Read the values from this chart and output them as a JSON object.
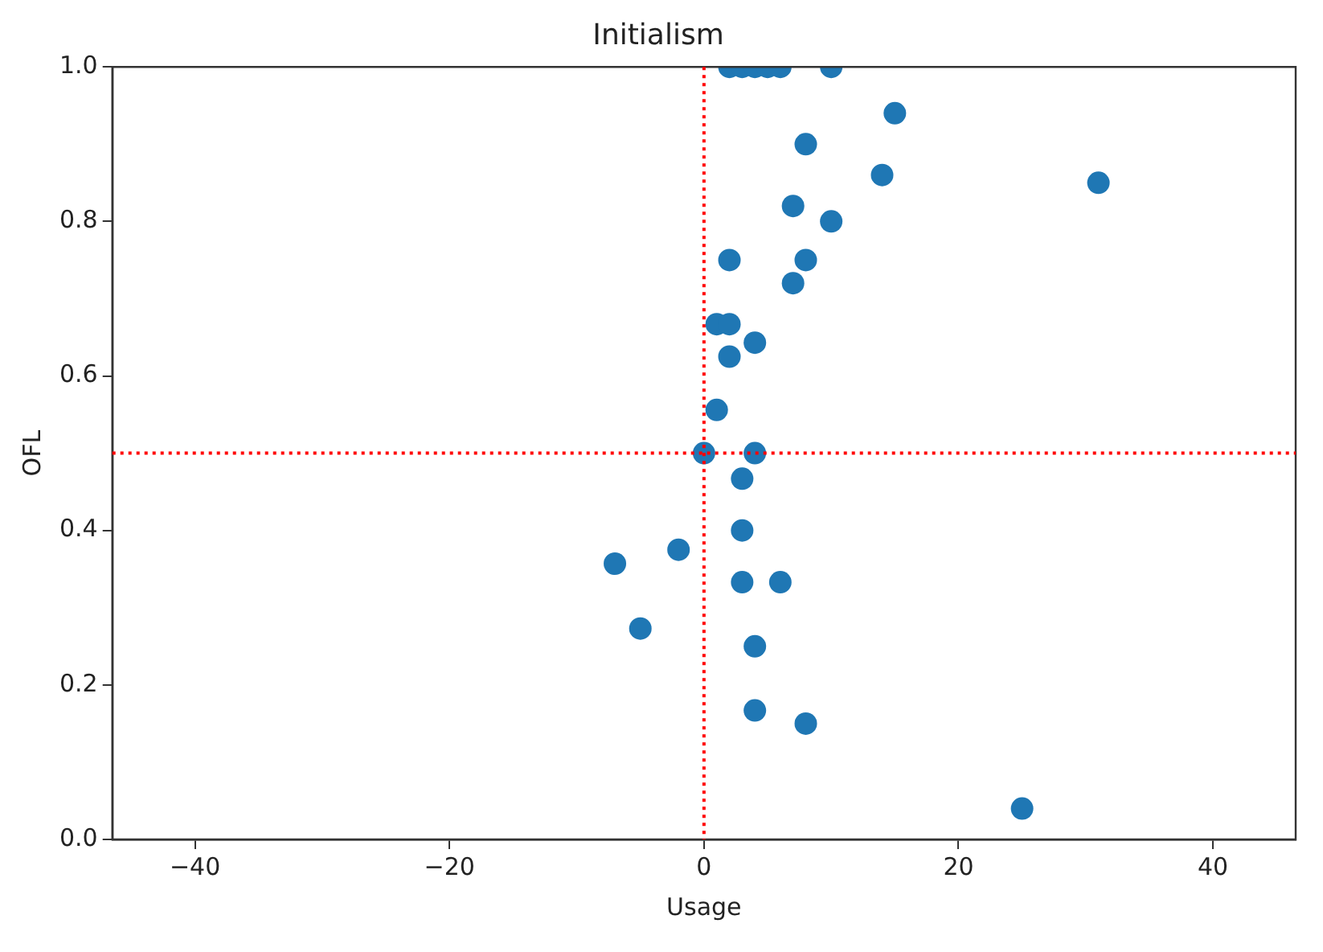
{
  "chart_data": {
    "type": "scatter",
    "title": "Initialism",
    "xlabel": "Usage",
    "ylabel": "OFL",
    "x": [
      2,
      3,
      4,
      5,
      6,
      10,
      15,
      8,
      14,
      31,
      7,
      10,
      2,
      8,
      7,
      1,
      2,
      4,
      2,
      1,
      0,
      4,
      3,
      3,
      -2,
      -7,
      3,
      6,
      -5,
      4,
      4,
      8,
      25
    ],
    "series": [
      {
        "color": "#1f77b4",
        "values": [
          1.0,
          1.0,
          1.0,
          1.0,
          1.0,
          1.0,
          0.94,
          0.9,
          0.86,
          0.85,
          0.82,
          0.8,
          0.75,
          0.75,
          0.72,
          0.667,
          0.667,
          0.643,
          0.625,
          0.556,
          0.5,
          0.5,
          0.467,
          0.4,
          0.375,
          0.357,
          0.333,
          0.333,
          0.273,
          0.25,
          0.167,
          0.15,
          0.04
        ]
      }
    ],
    "xlim": [
      -46.5,
      46.5
    ],
    "ylim": [
      0,
      1.0
    ],
    "xticks": [
      {
        "value": -40,
        "label": "−40"
      },
      {
        "value": -20,
        "label": "−20"
      },
      0,
      20,
      40
    ],
    "yticks": [
      {
        "value": 0,
        "label": "0.0"
      },
      {
        "value": 0.2,
        "label": "0.2"
      },
      {
        "value": 0.4,
        "label": "0.4"
      },
      {
        "value": 0.6,
        "label": "0.6"
      },
      {
        "value": 0.8,
        "label": "0.8"
      },
      {
        "value": 1.0,
        "label": "1.0"
      }
    ],
    "ref_lines": [
      {
        "axis": "x",
        "value": 0,
        "color": "#ff0000",
        "line_style": "dotted"
      },
      {
        "axis": "y",
        "value": 0.5,
        "color": "#ff0000",
        "line_style": "dotted"
      }
    ],
    "marker": "circle",
    "grid": false,
    "legend": false
  }
}
